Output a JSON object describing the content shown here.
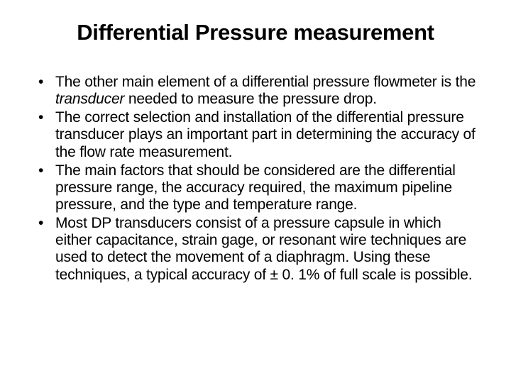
{
  "slide": {
    "title": "Differential Pressure measurement",
    "bullets": [
      {
        "pre": "The other main element of a differential pressure flowmeter is the ",
        "italic": "transducer",
        "post": " needed to measure the pressure drop."
      },
      {
        "text": "The correct selection and installation of the differential pressure transducer plays an important part in determining the accuracy of the flow rate measurement."
      },
      {
        "text": "The main factors that should be considered are the differential pressure range, the accuracy required, the maximum pipeline pressure, and the type and temperature range."
      },
      {
        "text": "Most DP transducers consist of a pressure capsule in which either capacitance, strain gage, or resonant wire techniques are used to detect the movement of a diaphragm. Using these techniques, a typical accuracy of ± 0. 1% of full scale is possible."
      }
    ]
  },
  "style": {
    "background_color": "#ffffff",
    "text_color": "#000000",
    "title_fontsize": 31,
    "body_fontsize": 21,
    "font_family": "Arial"
  }
}
